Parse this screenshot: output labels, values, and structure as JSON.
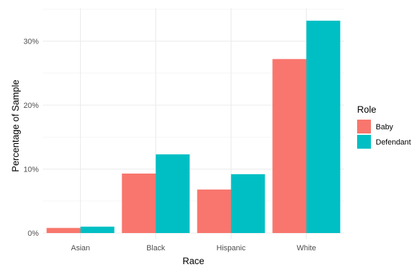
{
  "chart_data": {
    "type": "bar",
    "categories": [
      "Asian",
      "Black",
      "Hispanic",
      "White"
    ],
    "series": [
      {
        "name": "Baby",
        "values": [
          0.8,
          9.3,
          6.8,
          27.2
        ],
        "color": "#F8766D"
      },
      {
        "name": "Defendant",
        "values": [
          1.0,
          12.3,
          9.2,
          33.2
        ],
        "color": "#00BFC4"
      }
    ],
    "xlabel": "Race",
    "ylabel": "Percentage of Sample",
    "ylim": [
      0,
      35
    ],
    "yticks": [
      0,
      10,
      20,
      30
    ],
    "ytick_labels": [
      "0%",
      "10%",
      "20%",
      "30%"
    ],
    "legend_title": "Role",
    "legend_position": "right",
    "grid": true
  }
}
